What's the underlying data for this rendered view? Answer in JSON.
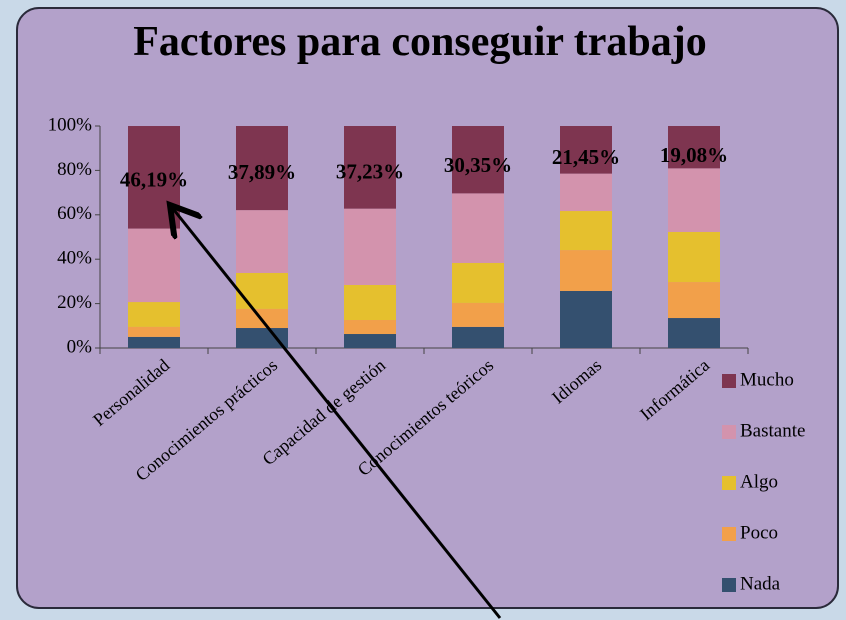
{
  "chart_data": {
    "type": "stacked_bar",
    "title": "Factores para conseguir trabajo",
    "categories": [
      "Personalidad",
      "Conocimientos prácticos",
      "Capacidad de gestión",
      "Conocimientos teóricos",
      "Idiomas",
      "Informática"
    ],
    "series": [
      {
        "name": "Nada",
        "color": "#34506f",
        "values": [
          5,
          9,
          6.3,
          9.5,
          25.7,
          13.5
        ]
      },
      {
        "name": "Poco",
        "color": "#f2a04a",
        "values": [
          4.5,
          8.6,
          6.3,
          10.8,
          18.4,
          16.2
        ]
      },
      {
        "name": "Algo",
        "color": "#e5c02e",
        "values": [
          11.2,
          16.2,
          15.8,
          18,
          17.6,
          22.6
        ]
      },
      {
        "name": "Bastante",
        "color": "#d393ad",
        "values": [
          33.1,
          28.31,
          34.37,
          31.35,
          16.85,
          28.62
        ]
      },
      {
        "name": "Mucho",
        "color": "#7e3550",
        "values": [
          46.19,
          37.89,
          37.23,
          30.35,
          21.45,
          19.08
        ],
        "value_labels": [
          "46,19%",
          "37,89%",
          "37,23%",
          "30,35%",
          "21,45%",
          "19,08%"
        ]
      }
    ],
    "ylim": [
      0,
      100
    ],
    "yticks": [
      {
        "value": 0,
        "label": "0%"
      },
      {
        "value": 20,
        "label": "20%"
      },
      {
        "value": 40,
        "label": "40%"
      },
      {
        "value": 60,
        "label": "60%"
      },
      {
        "value": 80,
        "label": "80%"
      },
      {
        "value": 100,
        "label": "100%"
      }
    ],
    "grid": false,
    "legend": "right"
  }
}
